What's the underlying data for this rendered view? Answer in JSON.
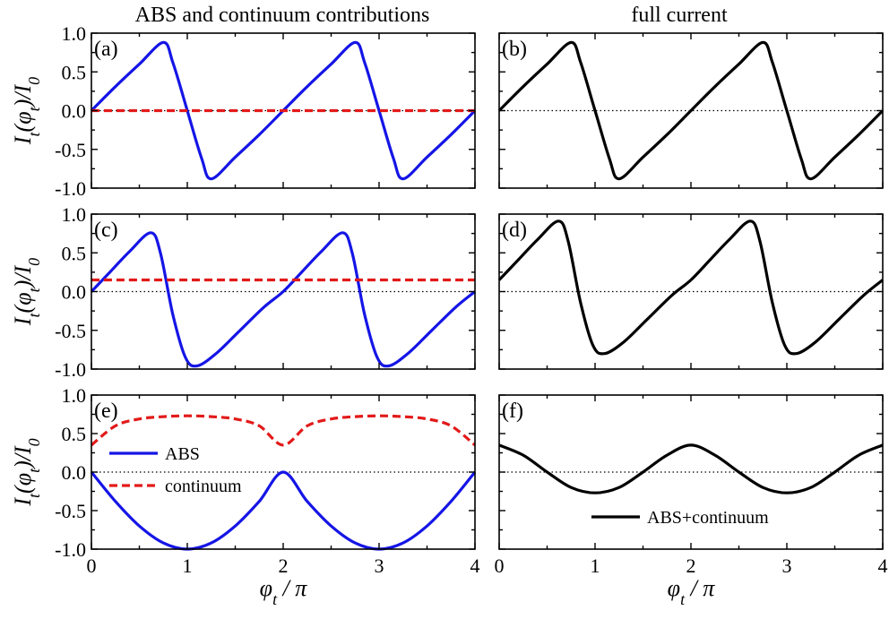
{
  "column_titles": [
    "ABS and continuum contributions",
    "full current"
  ],
  "y_axis_label": "I_t(φ_t)/I_0",
  "x_axis_label": "φ_t / π",
  "legend": {
    "abs": "ABS",
    "continuum": "continuum",
    "full": "ABS+continuum"
  },
  "colors": {
    "abs": "#1515e6",
    "continuum": "#e31a1a",
    "full": "#000000"
  },
  "x_ticks": [
    0,
    1,
    2,
    3,
    4
  ],
  "y_ticks": [
    "1.0",
    "0.5",
    "0.0",
    "-0.5",
    "-1.0"
  ],
  "chart_data": [
    {
      "panel": "(a)",
      "type": "line",
      "xlim": [
        0,
        4
      ],
      "ylim": [
        -1,
        1
      ],
      "reference_line": 0,
      "series": [
        {
          "name": "ABS",
          "style": "solid",
          "color": "#1515e6",
          "x": [
            0,
            0.25,
            0.5,
            0.75,
            0.85,
            1.0,
            1.15,
            1.25,
            1.5,
            1.75,
            2.0,
            2.25,
            2.5,
            2.75,
            2.85,
            3.0,
            3.15,
            3.25,
            3.5,
            3.75,
            4.0
          ],
          "y": [
            0,
            0.31,
            0.6,
            0.88,
            0.62,
            0,
            -0.62,
            -0.88,
            -0.6,
            -0.31,
            0,
            0.31,
            0.6,
            0.88,
            0.62,
            0,
            -0.62,
            -0.88,
            -0.6,
            -0.31,
            0
          ]
        },
        {
          "name": "continuum",
          "style": "dashed",
          "color": "#e31a1a",
          "x": [
            0,
            1,
            2,
            3,
            4
          ],
          "y": [
            0,
            0,
            0,
            0,
            0
          ]
        }
      ]
    },
    {
      "panel": "(b)",
      "type": "line",
      "xlim": [
        0,
        4
      ],
      "ylim": [
        -1,
        1
      ],
      "reference_line": 0,
      "series": [
        {
          "name": "ABS+continuum",
          "style": "solid",
          "color": "#000000",
          "x": [
            0,
            0.25,
            0.5,
            0.75,
            0.85,
            1.0,
            1.15,
            1.25,
            1.5,
            1.75,
            2.0,
            2.25,
            2.5,
            2.75,
            2.85,
            3.0,
            3.15,
            3.25,
            3.5,
            3.75,
            4.0
          ],
          "y": [
            0,
            0.31,
            0.6,
            0.88,
            0.62,
            0,
            -0.62,
            -0.88,
            -0.6,
            -0.31,
            0,
            0.31,
            0.6,
            0.88,
            0.62,
            0,
            -0.62,
            -0.88,
            -0.6,
            -0.31,
            0
          ]
        }
      ]
    },
    {
      "panel": "(c)",
      "type": "line",
      "xlim": [
        0,
        4
      ],
      "ylim": [
        -1,
        1
      ],
      "reference_line": 0,
      "series": [
        {
          "name": "ABS",
          "style": "solid",
          "color": "#1515e6",
          "x": [
            0,
            0.2,
            0.4,
            0.62,
            0.72,
            0.85,
            0.98,
            1.1,
            1.3,
            1.55,
            1.8,
            2.0,
            2.2,
            2.4,
            2.62,
            2.72,
            2.85,
            2.98,
            3.1,
            3.3,
            3.55,
            3.8,
            4.0
          ],
          "y": [
            0,
            0.26,
            0.52,
            0.76,
            0.5,
            -0.3,
            -0.85,
            -0.96,
            -0.8,
            -0.5,
            -0.2,
            0,
            0.26,
            0.52,
            0.76,
            0.5,
            -0.3,
            -0.85,
            -0.96,
            -0.8,
            -0.5,
            -0.2,
            0
          ]
        },
        {
          "name": "continuum",
          "style": "dashed",
          "color": "#e31a1a",
          "x": [
            0,
            1,
            2,
            3,
            4
          ],
          "y": [
            0.15,
            0.15,
            0.15,
            0.15,
            0.15
          ]
        }
      ]
    },
    {
      "panel": "(d)",
      "type": "line",
      "xlim": [
        0,
        4
      ],
      "ylim": [
        -1,
        1
      ],
      "reference_line": 0,
      "series": [
        {
          "name": "ABS+continuum",
          "style": "solid",
          "color": "#000000",
          "x": [
            0,
            0.2,
            0.4,
            0.62,
            0.72,
            0.85,
            0.98,
            1.1,
            1.3,
            1.55,
            1.8,
            2.0,
            2.2,
            2.4,
            2.62,
            2.72,
            2.85,
            2.98,
            3.1,
            3.3,
            3.55,
            3.8,
            4.0
          ],
          "y": [
            0.15,
            0.41,
            0.67,
            0.91,
            0.65,
            -0.15,
            -0.7,
            -0.8,
            -0.65,
            -0.35,
            -0.05,
            0.15,
            0.41,
            0.67,
            0.91,
            0.65,
            -0.15,
            -0.7,
            -0.8,
            -0.65,
            -0.35,
            -0.05,
            0.15
          ]
        }
      ]
    },
    {
      "panel": "(e)",
      "type": "line",
      "xlim": [
        0,
        4
      ],
      "ylim": [
        -1,
        1
      ],
      "reference_line": 0,
      "series": [
        {
          "name": "ABS",
          "style": "solid",
          "color": "#1515e6",
          "x": [
            0,
            0.25,
            0.5,
            0.75,
            1.0,
            1.25,
            1.5,
            1.75,
            2.0,
            2.25,
            2.5,
            2.75,
            3.0,
            3.25,
            3.5,
            3.75,
            4.0
          ],
          "y": [
            0,
            -0.38,
            -0.7,
            -0.92,
            -1.0,
            -0.92,
            -0.7,
            -0.38,
            0,
            -0.38,
            -0.7,
            -0.92,
            -1.0,
            -0.92,
            -0.7,
            -0.38,
            0
          ]
        },
        {
          "name": "continuum",
          "style": "dashed",
          "color": "#e31a1a",
          "x": [
            0,
            0.25,
            0.5,
            0.75,
            1.0,
            1.25,
            1.5,
            1.75,
            2.0,
            2.25,
            2.5,
            2.75,
            3.0,
            3.25,
            3.5,
            3.75,
            4.0
          ],
          "y": [
            0.35,
            0.6,
            0.69,
            0.72,
            0.73,
            0.72,
            0.69,
            0.6,
            0.35,
            0.6,
            0.69,
            0.72,
            0.73,
            0.72,
            0.69,
            0.6,
            0.35
          ]
        }
      ]
    },
    {
      "panel": "(f)",
      "type": "line",
      "xlim": [
        0,
        4
      ],
      "ylim": [
        -1,
        1
      ],
      "reference_line": 0,
      "series": [
        {
          "name": "ABS+continuum",
          "style": "solid",
          "color": "#000000",
          "x": [
            0,
            0.25,
            0.5,
            0.75,
            1.0,
            1.25,
            1.5,
            1.75,
            2.0,
            2.25,
            2.5,
            2.75,
            3.0,
            3.25,
            3.5,
            3.75,
            4.0
          ],
          "y": [
            0.35,
            0.22,
            0.0,
            -0.2,
            -0.27,
            -0.2,
            0.0,
            0.22,
            0.35,
            0.22,
            0.0,
            -0.2,
            -0.27,
            -0.2,
            0.0,
            0.22,
            0.35
          ]
        }
      ]
    }
  ]
}
